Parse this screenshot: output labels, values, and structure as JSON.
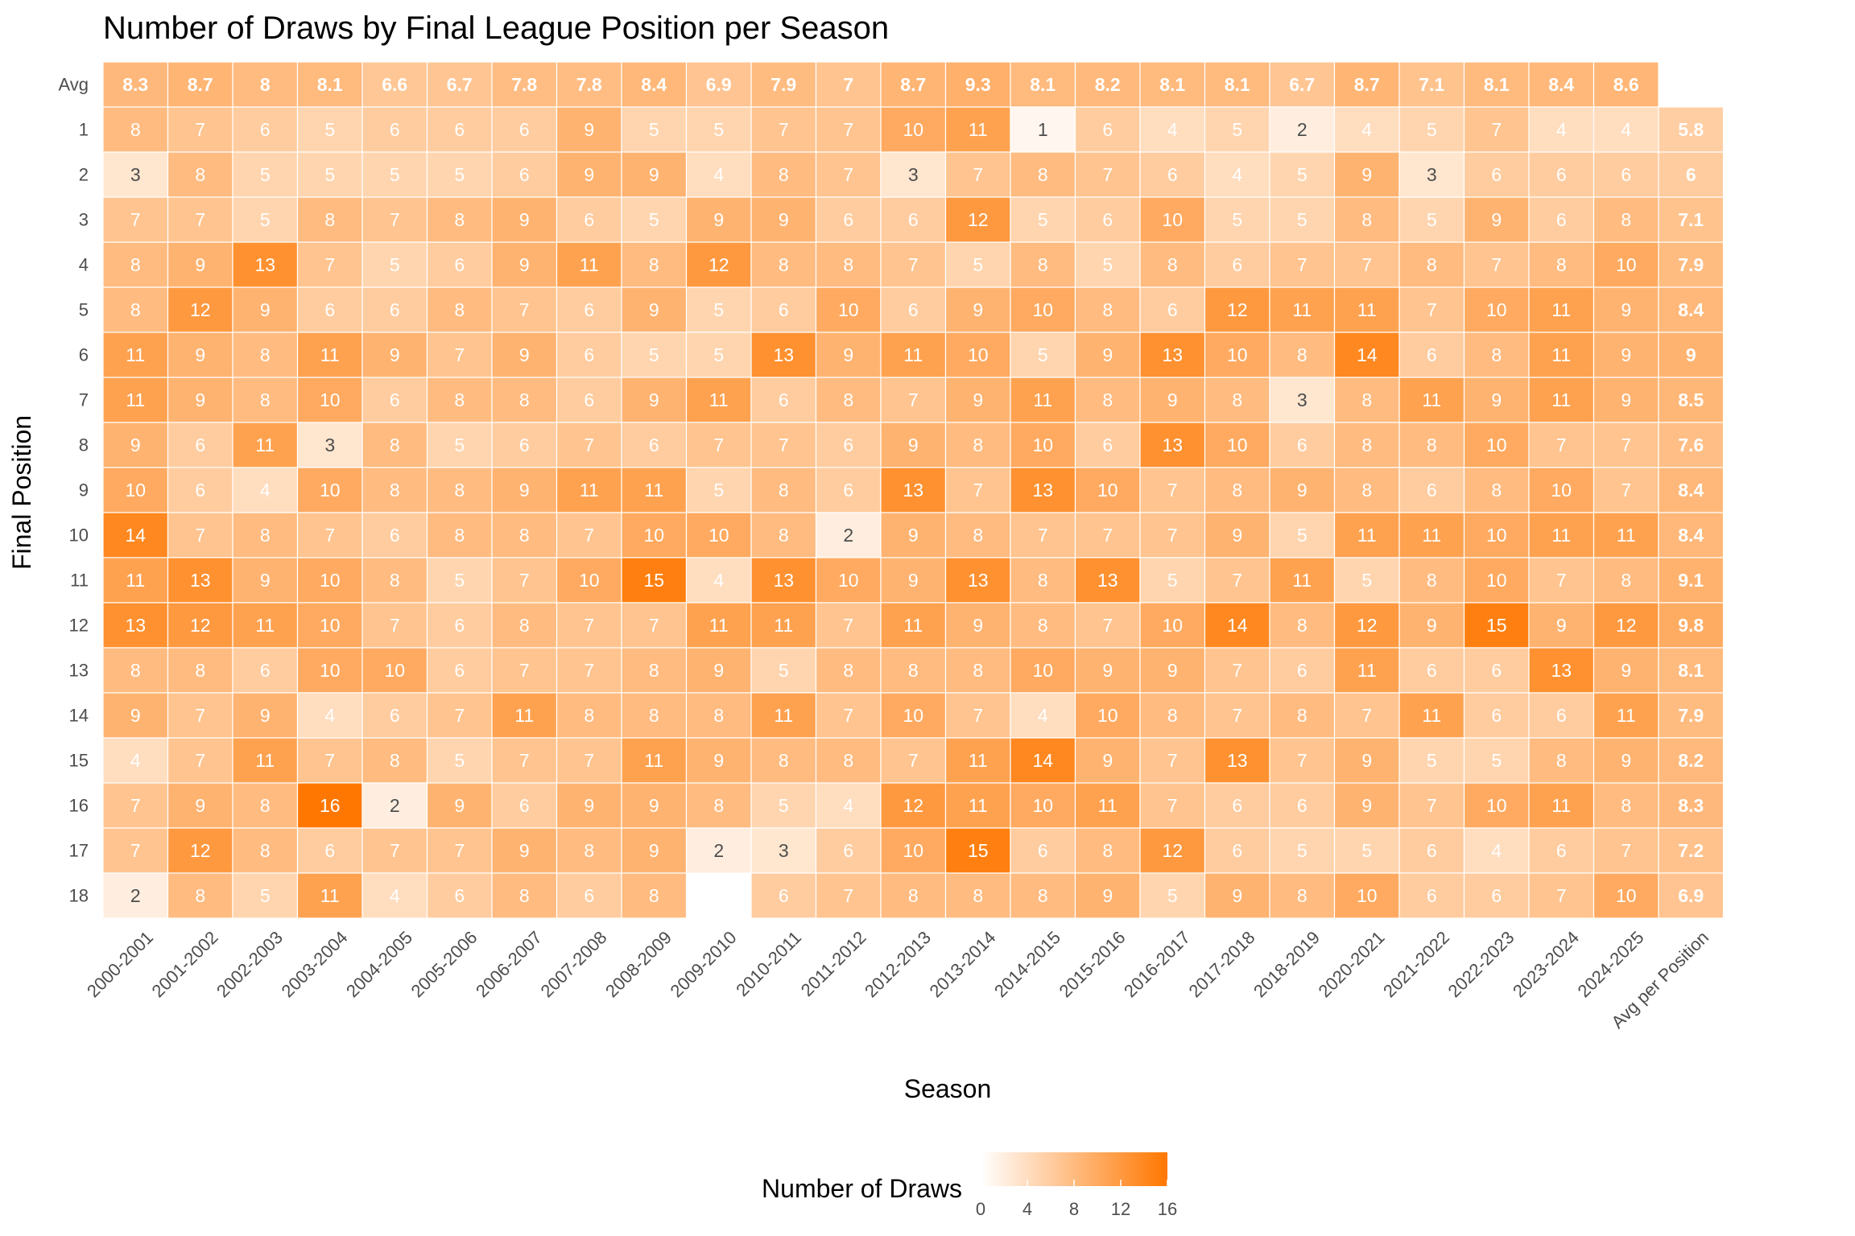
{
  "chart_data": {
    "type": "heatmap",
    "title": "Number of Draws by Final League Position per Season",
    "xlabel": "Season",
    "ylabel": "Final Position",
    "seasons": [
      "2000-2001",
      "2001-2002",
      "2002-2003",
      "2003-2004",
      "2004-2005",
      "2005-2006",
      "2006-2007",
      "2007-2008",
      "2008-2009",
      "2009-2010",
      "2010-2011",
      "2011-2012",
      "2012-2013",
      "2013-2014",
      "2014-2015",
      "2015-2016",
      "2016-2017",
      "2017-2018",
      "2018-2019",
      "2020-2021",
      "2021-2022",
      "2022-2023",
      "2023-2024",
      "2024-2025"
    ],
    "avg_column_label": "Avg per Position",
    "avg_row_label": "Avg",
    "positions": [
      "1",
      "2",
      "3",
      "4",
      "5",
      "6",
      "7",
      "8",
      "9",
      "10",
      "11",
      "12",
      "13",
      "14",
      "15",
      "16",
      "17",
      "18"
    ],
    "values": [
      [
        8,
        7,
        6,
        5,
        6,
        6,
        6,
        9,
        5,
        5,
        7,
        7,
        10,
        11,
        1,
        6,
        4,
        5,
        2,
        4,
        5,
        7,
        4,
        4
      ],
      [
        3,
        8,
        5,
        5,
        5,
        5,
        6,
        9,
        9,
        4,
        8,
        7,
        3,
        7,
        8,
        7,
        6,
        4,
        5,
        9,
        3,
        6,
        6,
        6
      ],
      [
        7,
        7,
        5,
        8,
        7,
        8,
        9,
        6,
        5,
        9,
        9,
        6,
        6,
        12,
        5,
        6,
        10,
        5,
        5,
        8,
        5,
        9,
        6,
        8
      ],
      [
        8,
        9,
        13,
        7,
        5,
        6,
        9,
        11,
        8,
        12,
        8,
        8,
        7,
        5,
        8,
        5,
        8,
        6,
        7,
        7,
        8,
        7,
        8,
        10
      ],
      [
        8,
        12,
        9,
        6,
        6,
        8,
        7,
        6,
        9,
        5,
        6,
        10,
        6,
        9,
        10,
        8,
        6,
        12,
        11,
        11,
        7,
        10,
        11,
        9
      ],
      [
        11,
        9,
        8,
        11,
        9,
        7,
        9,
        6,
        5,
        5,
        13,
        9,
        11,
        10,
        5,
        9,
        13,
        10,
        8,
        14,
        6,
        8,
        11,
        9
      ],
      [
        11,
        9,
        8,
        10,
        6,
        8,
        8,
        6,
        9,
        11,
        6,
        8,
        7,
        9,
        11,
        8,
        9,
        8,
        3,
        8,
        11,
        9,
        11,
        9
      ],
      [
        9,
        6,
        11,
        3,
        8,
        5,
        6,
        7,
        6,
        7,
        7,
        6,
        9,
        8,
        10,
        6,
        13,
        10,
        6,
        8,
        8,
        10,
        7,
        7
      ],
      [
        10,
        6,
        4,
        10,
        8,
        8,
        9,
        11,
        11,
        5,
        8,
        6,
        13,
        7,
        13,
        10,
        7,
        8,
        9,
        8,
        6,
        8,
        10,
        7
      ],
      [
        14,
        7,
        8,
        7,
        6,
        8,
        8,
        7,
        10,
        10,
        8,
        2,
        9,
        8,
        7,
        7,
        7,
        9,
        5,
        11,
        11,
        10,
        11,
        11
      ],
      [
        11,
        13,
        9,
        10,
        8,
        5,
        7,
        10,
        15,
        4,
        13,
        10,
        9,
        13,
        8,
        13,
        5,
        7,
        11,
        5,
        8,
        10,
        7,
        8
      ],
      [
        13,
        12,
        11,
        10,
        7,
        6,
        8,
        7,
        7,
        11,
        11,
        7,
        11,
        9,
        8,
        7,
        10,
        14,
        8,
        12,
        9,
        15,
        9,
        12
      ],
      [
        8,
        8,
        6,
        10,
        10,
        6,
        7,
        7,
        8,
        9,
        5,
        8,
        8,
        8,
        10,
        9,
        9,
        7,
        6,
        11,
        6,
        6,
        13,
        9
      ],
      [
        9,
        7,
        9,
        4,
        6,
        7,
        11,
        8,
        8,
        8,
        11,
        7,
        10,
        7,
        4,
        10,
        8,
        7,
        8,
        7,
        11,
        6,
        6,
        11
      ],
      [
        4,
        7,
        11,
        7,
        8,
        5,
        7,
        7,
        11,
        9,
        8,
        8,
        7,
        11,
        14,
        9,
        7,
        13,
        7,
        9,
        5,
        5,
        8,
        9
      ],
      [
        7,
        9,
        8,
        16,
        2,
        9,
        6,
        9,
        9,
        8,
        5,
        4,
        12,
        11,
        10,
        11,
        7,
        6,
        6,
        9,
        7,
        10,
        11,
        8
      ],
      [
        7,
        12,
        8,
        6,
        7,
        7,
        9,
        8,
        9,
        2,
        3,
        6,
        10,
        15,
        6,
        8,
        12,
        6,
        5,
        5,
        6,
        4,
        6,
        7
      ],
      [
        2,
        8,
        5,
        11,
        4,
        6,
        8,
        6,
        8,
        null,
        6,
        7,
        8,
        8,
        8,
        9,
        5,
        9,
        8,
        10,
        6,
        6,
        7,
        10
      ]
    ],
    "season_avg": [
      8.3,
      8.7,
      8,
      8.1,
      6.6,
      6.7,
      7.8,
      7.8,
      8.4,
      6.9,
      7.9,
      7,
      8.7,
      9.3,
      8.1,
      8.2,
      8.1,
      8.1,
      6.7,
      8.7,
      7.1,
      8.1,
      8.4,
      8.6
    ],
    "position_avg": [
      5.8,
      6,
      7.1,
      7.9,
      8.4,
      9,
      8.5,
      7.6,
      8.4,
      8.4,
      9.1,
      9.8,
      8.1,
      7.9,
      8.2,
      8.3,
      7.2,
      6.9
    ],
    "legend": {
      "title": "Number of Draws",
      "ticks": [
        0,
        4,
        8,
        12,
        16
      ],
      "range": [
        0,
        16
      ],
      "placement": "bottom"
    },
    "colors": {
      "low": "#ffffff",
      "high": "#ff7700",
      "grid": "#ffffff",
      "missing": "#ffffff",
      "text_dark": "#4d4d4d",
      "text_light": "#ffffff"
    }
  }
}
